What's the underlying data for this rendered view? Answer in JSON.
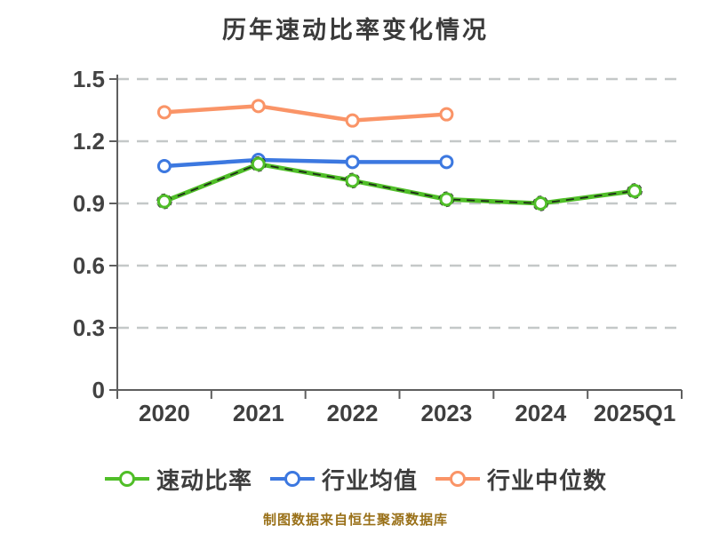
{
  "chart_data": {
    "type": "line",
    "title": "历年速动比率变化情况",
    "xlabel": "",
    "ylabel": "",
    "categories": [
      "2020",
      "2021",
      "2022",
      "2023",
      "2024",
      "2025Q1"
    ],
    "series": [
      {
        "name": "速动比率",
        "color": "#50be28",
        "marker_fill": "#ffffff",
        "edge_dashed": true,
        "values": [
          0.91,
          1.09,
          1.01,
          0.92,
          0.9,
          0.96
        ]
      },
      {
        "name": "行业均值",
        "color": "#3c78e0",
        "marker_fill": "#ffffff",
        "edge_dashed": false,
        "values": [
          1.08,
          1.11,
          1.1,
          1.1,
          null,
          null
        ]
      },
      {
        "name": "行业中位数",
        "color": "#fa9467",
        "marker_fill": "#ffffff",
        "edge_dashed": false,
        "values": [
          1.34,
          1.37,
          1.3,
          1.33,
          null,
          null
        ]
      }
    ],
    "ylim": [
      0,
      1.5
    ],
    "yticks": [
      0,
      0.3,
      0.6,
      0.9,
      1.2,
      1.5
    ],
    "ytick_labels": [
      "0",
      "0.3",
      "0.6",
      "0.9",
      "1.2",
      "1.5"
    ],
    "grid": "horizontal-dashed",
    "grid_color": "#c4c8c8",
    "axis_color": "#5f5f5f",
    "legend_position": "bottom",
    "footer": "制图数据来自恒生聚源数据库",
    "footer_color": "#997018"
  }
}
